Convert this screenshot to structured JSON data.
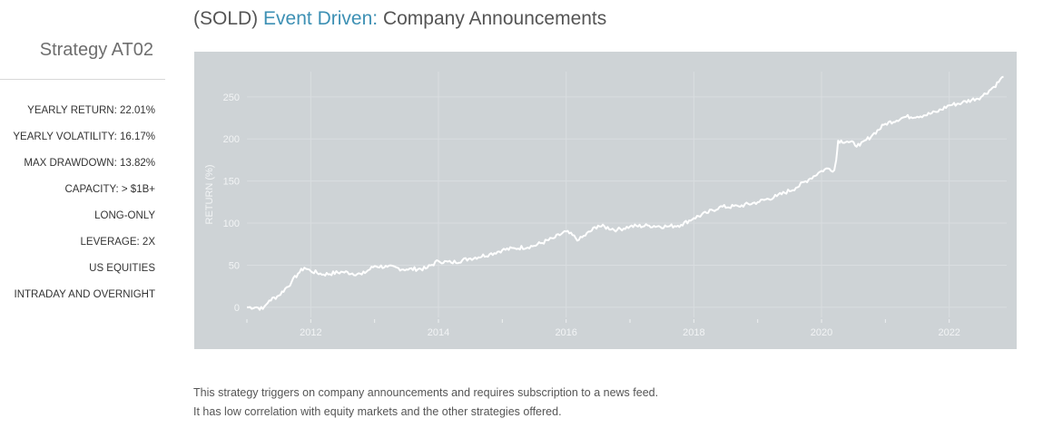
{
  "sidebar": {
    "strategy_name": "Strategy AT02",
    "stats": [
      "YEARLY RETURN: 22.01%",
      "YEARLY VOLATILITY: 16.17%",
      "MAX DRAWDOWN: 13.82%",
      "CAPACITY: > $1B+",
      "LONG-ONLY",
      "LEVERAGE: 2X",
      "US EQUITIES",
      "INTRADAY AND OVERNIGHT"
    ]
  },
  "header": {
    "status": "(SOLD)",
    "category": "Event Driven:",
    "subject": "Company Announcements"
  },
  "description": [
    "This strategy triggers on company announcements and requires subscription to a news feed.",
    "It has low correlation with equity markets and the other strategies offered."
  ],
  "colors": {
    "accent": "#3d90b4",
    "chart_background": "#ced3d6",
    "line": "#ffffff"
  },
  "chart_data": {
    "type": "line",
    "title": "",
    "xlabel": "",
    "ylabel": "RETURN (%)",
    "xlim": [
      2011.0,
      2022.9
    ],
    "ylim": [
      -12,
      280
    ],
    "x_ticks": [
      2012,
      2014,
      2016,
      2018,
      2020,
      2022
    ],
    "y_ticks": [
      0,
      50,
      100,
      150,
      200,
      250
    ],
    "grid": true,
    "series": [
      {
        "x": [
          2011.0,
          2011.15,
          2011.25,
          2011.3,
          2011.35,
          2011.5,
          2011.7,
          2011.8,
          2011.9,
          2012.0,
          2012.2,
          2012.5,
          2012.8,
          2013.0,
          2013.2,
          2013.5,
          2013.8,
          2014.0,
          2014.2,
          2014.5,
          2014.8,
          2015.0,
          2015.2,
          2015.5,
          2015.8,
          2016.0,
          2016.2,
          2016.5,
          2016.8,
          2017.0,
          2017.3,
          2017.6,
          2017.8,
          2018.0,
          2018.2,
          2018.4,
          2018.7,
          2019.0,
          2019.3,
          2019.6,
          2019.8,
          2020.0,
          2020.1,
          2020.2,
          2020.23,
          2020.26,
          2020.4,
          2020.6,
          2020.8,
          2021.0,
          2021.3,
          2021.6,
          2021.8,
          2022.0,
          2022.2,
          2022.5,
          2022.7,
          2022.85
        ],
        "y": [
          0,
          0,
          -2,
          3,
          8,
          14,
          30,
          40,
          47,
          43,
          39,
          42,
          39,
          49,
          48,
          45,
          46,
          55,
          53,
          58,
          63,
          68,
          70,
          73,
          82,
          90,
          80,
          97,
          92,
          96,
          97,
          96,
          98,
          106,
          112,
          119,
          120,
          125,
          132,
          142,
          152,
          162,
          165,
          163,
          175,
          198,
          197,
          192,
          205,
          218,
          226,
          228,
          232,
          240,
          243,
          250,
          262,
          274
        ]
      }
    ]
  }
}
